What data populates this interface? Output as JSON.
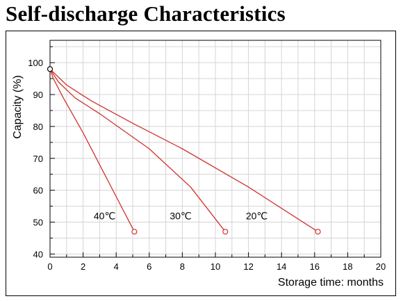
{
  "chart_data": {
    "type": "line",
    "title": "Self-discharge Characteristics",
    "xlabel": "Storage time: months",
    "ylabel": "Capacity (%)",
    "xlim": [
      0,
      20
    ],
    "ylim": [
      39,
      107
    ],
    "xticks": [
      0,
      2,
      4,
      6,
      8,
      10,
      12,
      14,
      16,
      18,
      20
    ],
    "yticks": [
      40,
      50,
      60,
      70,
      80,
      90,
      100
    ],
    "grid": true,
    "line_color": "#d0312d",
    "series": [
      {
        "name": "40℃",
        "x": [
          0,
          0.2,
          0.8,
          2,
          3.5,
          5.1
        ],
        "y": [
          98,
          95,
          89,
          78,
          63,
          47
        ],
        "label_at": [
          3.3,
          52
        ]
      },
      {
        "name": "30℃",
        "x": [
          0,
          0.5,
          1.5,
          3,
          6,
          8.5,
          10.6
        ],
        "y": [
          98,
          94,
          89,
          84,
          73,
          61,
          47
        ],
        "label_at": [
          7.9,
          52
        ]
      },
      {
        "name": "20℃",
        "x": [
          0,
          1,
          2.5,
          5,
          8,
          12,
          16.2
        ],
        "y": [
          98,
          93,
          88,
          81,
          73,
          61,
          47
        ],
        "label_at": [
          12.5,
          52
        ]
      }
    ]
  }
}
